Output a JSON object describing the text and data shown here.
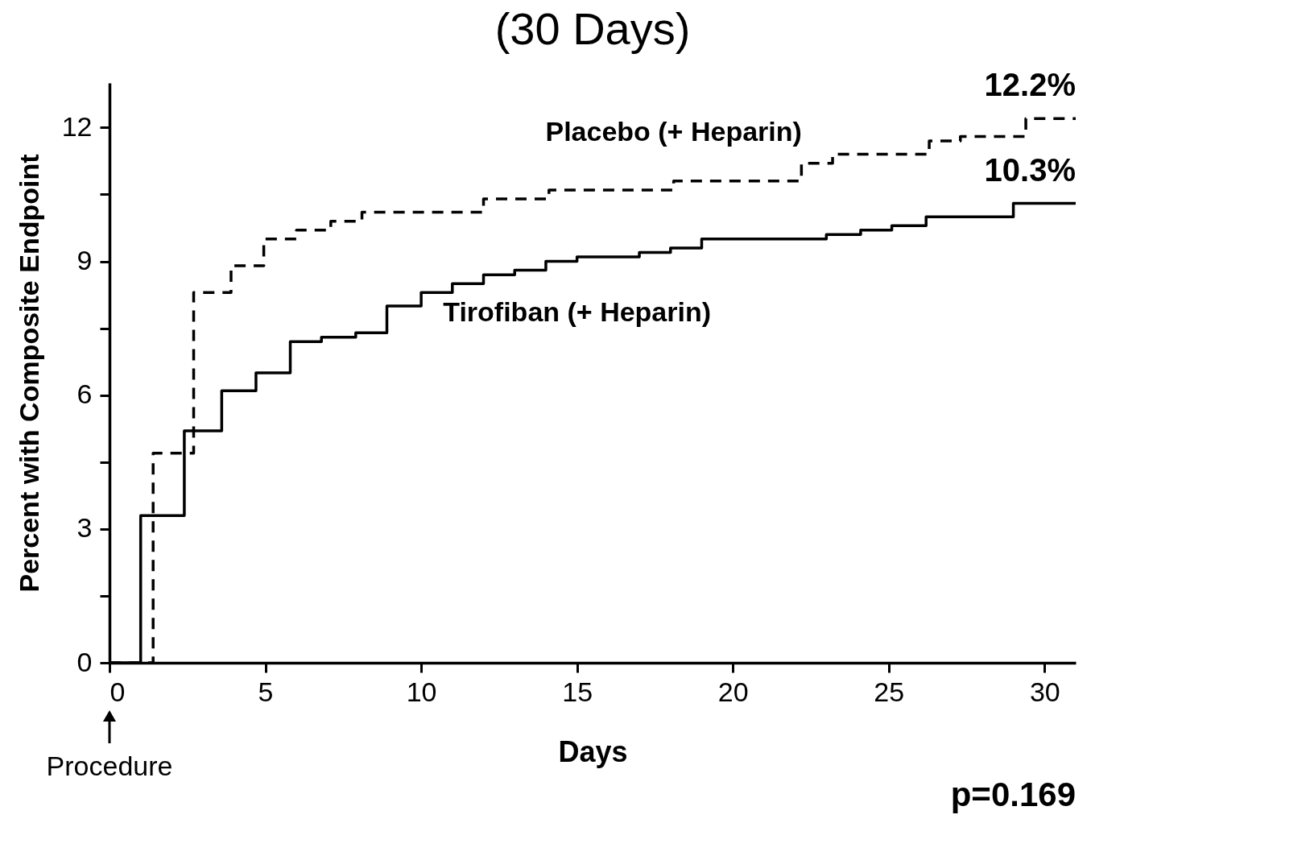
{
  "chart_data": {
    "type": "step",
    "title": "(30 Days)",
    "xlabel": "Days",
    "ylabel": "Percent with Composite Endpoint",
    "xlim": [
      0,
      31
    ],
    "xticks": [
      0,
      5,
      10,
      15,
      20,
      25,
      30
    ],
    "ylim": [
      0,
      13
    ],
    "yticks": [
      0,
      {
        "value": 1.5,
        "label": null
      },
      3,
      {
        "value": 4.5,
        "label": null
      },
      6,
      {
        "value": 7.5,
        "label": null
      },
      9,
      {
        "value": 10.5,
        "label": null
      },
      12
    ],
    "grid": false,
    "legend": false,
    "marker": "none",
    "series": [
      {
        "name": "Placebo (+ Heparin)",
        "color": "#000000",
        "line_style": "dashed",
        "x": [
          0,
          1.4,
          2.7,
          3.9,
          4.95,
          6,
          7.1,
          8.1,
          12,
          14.1,
          18.1,
          22.2,
          23.2,
          26.3,
          27.3,
          29.4,
          31
        ],
        "values": [
          0,
          4.7,
          8.3,
          8.9,
          9.5,
          9.7,
          9.9,
          10.1,
          10.4,
          10.6,
          10.8,
          11.2,
          11.4,
          11.7,
          11.8,
          12.2,
          12.2
        ]
      },
      {
        "name": "Tirofiban (+ Heparin)",
        "color": "#000000",
        "line_style": "solid",
        "x": [
          0,
          1,
          2.4,
          3.6,
          4.7,
          5.8,
          6.8,
          7.9,
          8.9,
          10,
          11,
          12,
          13,
          14,
          15,
          17,
          18,
          19,
          23,
          24.1,
          25.1,
          26.2,
          29,
          31
        ],
        "values": [
          0,
          3.3,
          5.2,
          6.1,
          6.5,
          7.2,
          7.3,
          7.4,
          8.0,
          8.3,
          8.5,
          8.7,
          8.8,
          9.0,
          9.1,
          9.2,
          9.3,
          9.5,
          9.6,
          9.7,
          9.8,
          10.0,
          10.3,
          10.3
        ]
      }
    ],
    "annotations": [
      {
        "text": "12.2%",
        "x": 31,
        "y": 12.2
      },
      {
        "text": "10.3%",
        "x": 31,
        "y": 10.3
      },
      "Procedure",
      "p=0.169"
    ]
  }
}
